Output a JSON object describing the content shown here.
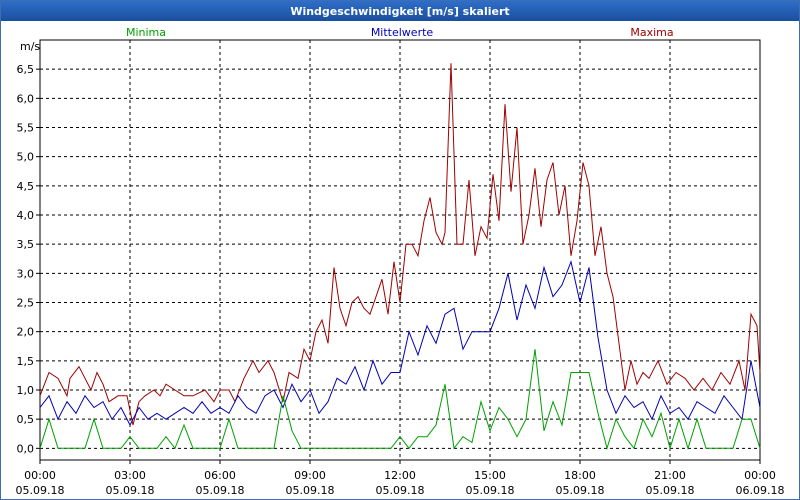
{
  "window": {
    "title": "Windgeschwindigkeit [m/s] skaliert"
  },
  "colors": {
    "minima": "#00a000",
    "mean": "#0000b4",
    "maxima": "#a00000",
    "grid": "#000000"
  },
  "chart_data": {
    "type": "line",
    "title": "Windgeschwindigkeit [m/s] skaliert",
    "ylabel": "m/s",
    "xlabel": "",
    "ylim": [
      -0.2,
      7.0
    ],
    "yticks": [
      "0,0",
      "0,5",
      "1,0",
      "1,5",
      "2,0",
      "2,5",
      "3,0",
      "3,5",
      "4,0",
      "4,5",
      "5,0",
      "5,5",
      "6,0",
      "6,5"
    ],
    "xlim": [
      0,
      24
    ],
    "xticks": [
      {
        "time": "00:00",
        "date": "05.09.18"
      },
      {
        "time": "03:00",
        "date": "05.09.18"
      },
      {
        "time": "06:00",
        "date": "05.09.18"
      },
      {
        "time": "09:00",
        "date": "05.09.18"
      },
      {
        "time": "12:00",
        "date": "05.09.18"
      },
      {
        "time": "15:00",
        "date": "05.09.18"
      },
      {
        "time": "18:00",
        "date": "05.09.18"
      },
      {
        "time": "21:00",
        "date": "05.09.18"
      },
      {
        "time": "00:00",
        "date": "06.09.18"
      }
    ],
    "legend": {
      "minima": "Minima",
      "mean": "Mittelwerte",
      "maxima": "Maxima"
    },
    "series": [
      {
        "key": "maxima",
        "name": "Maxima",
        "x": [
          0.0,
          0.3,
          0.6,
          0.9,
          1.0,
          1.3,
          1.5,
          1.7,
          1.9,
          2.1,
          2.3,
          2.6,
          2.9,
          3.1,
          3.3,
          3.5,
          3.8,
          4.0,
          4.2,
          4.5,
          4.8,
          5.1,
          5.5,
          5.8,
          6.0,
          6.3,
          6.5,
          6.8,
          7.1,
          7.3,
          7.6,
          7.8,
          8.1,
          8.3,
          8.6,
          8.8,
          9.0,
          9.2,
          9.4,
          9.6,
          9.8,
          10.0,
          10.2,
          10.4,
          10.6,
          10.8,
          11.0,
          11.2,
          11.4,
          11.6,
          11.8,
          12.0,
          12.2,
          12.4,
          12.6,
          12.8,
          13.0,
          13.2,
          13.4,
          13.5,
          13.7,
          13.9,
          14.1,
          14.3,
          14.5,
          14.7,
          14.9,
          15.1,
          15.3,
          15.5,
          15.7,
          15.9,
          16.1,
          16.3,
          16.5,
          16.7,
          16.9,
          17.1,
          17.3,
          17.5,
          17.7,
          17.9,
          18.1,
          18.3,
          18.5,
          18.7,
          18.9,
          19.1,
          19.3,
          19.5,
          19.7,
          19.9,
          20.1,
          20.3,
          20.6,
          20.9,
          21.2,
          21.5,
          21.8,
          22.1,
          22.4,
          22.7,
          23.0,
          23.3,
          23.5,
          23.7,
          23.9,
          24.0
        ],
        "values": [
          0.9,
          1.3,
          1.2,
          0.9,
          1.2,
          1.4,
          1.2,
          1.0,
          1.3,
          1.1,
          0.8,
          0.9,
          0.9,
          0.4,
          0.8,
          0.9,
          1.0,
          0.9,
          1.1,
          1.0,
          0.9,
          0.9,
          1.0,
          0.8,
          1.0,
          1.0,
          0.8,
          1.2,
          1.5,
          1.3,
          1.5,
          1.3,
          0.8,
          1.3,
          1.2,
          1.7,
          1.5,
          2.0,
          2.2,
          1.8,
          3.1,
          2.4,
          2.1,
          2.5,
          2.6,
          2.4,
          2.3,
          2.6,
          2.9,
          2.3,
          3.2,
          2.5,
          3.5,
          3.5,
          3.3,
          3.9,
          4.3,
          3.7,
          3.5,
          3.7,
          6.6,
          3.5,
          3.5,
          4.6,
          3.3,
          3.8,
          3.6,
          4.7,
          3.9,
          5.9,
          4.4,
          5.5,
          3.5,
          4.0,
          4.8,
          3.8,
          4.6,
          4.9,
          4.0,
          4.5,
          3.3,
          3.9,
          4.9,
          4.5,
          3.3,
          3.8,
          3.0,
          2.6,
          1.8,
          1.0,
          1.5,
          1.1,
          1.3,
          1.2,
          1.5,
          1.1,
          1.3,
          1.2,
          1.0,
          1.2,
          1.0,
          1.3,
          1.1,
          1.5,
          1.0,
          2.3,
          2.1,
          1.3
        ]
      },
      {
        "key": "mean",
        "name": "Mittelwerte",
        "x": [
          0.0,
          0.3,
          0.6,
          0.9,
          1.2,
          1.5,
          1.8,
          2.1,
          2.4,
          2.7,
          3.0,
          3.3,
          3.6,
          3.9,
          4.2,
          4.5,
          4.8,
          5.1,
          5.4,
          5.7,
          6.0,
          6.3,
          6.6,
          6.9,
          7.2,
          7.5,
          7.8,
          8.1,
          8.4,
          8.7,
          9.0,
          9.3,
          9.6,
          9.9,
          10.2,
          10.5,
          10.8,
          11.1,
          11.4,
          11.7,
          12.0,
          12.3,
          12.6,
          12.9,
          13.2,
          13.5,
          13.8,
          14.1,
          14.4,
          14.7,
          15.0,
          15.3,
          15.6,
          15.9,
          16.2,
          16.5,
          16.8,
          17.1,
          17.4,
          17.7,
          18.0,
          18.3,
          18.6,
          18.9,
          19.2,
          19.5,
          19.8,
          20.1,
          20.4,
          20.7,
          21.0,
          21.3,
          21.6,
          21.9,
          22.2,
          22.5,
          22.8,
          23.1,
          23.4,
          23.7,
          24.0
        ],
        "values": [
          0.7,
          0.9,
          0.5,
          0.8,
          0.6,
          0.9,
          0.7,
          0.8,
          0.5,
          0.7,
          0.4,
          0.7,
          0.5,
          0.6,
          0.5,
          0.6,
          0.7,
          0.6,
          0.8,
          0.6,
          0.7,
          0.6,
          0.9,
          0.7,
          0.6,
          0.9,
          1.0,
          0.7,
          1.1,
          0.8,
          1.0,
          0.6,
          0.8,
          1.2,
          1.1,
          1.4,
          1.0,
          1.5,
          1.1,
          1.3,
          1.3,
          2.0,
          1.6,
          2.1,
          1.8,
          2.3,
          2.4,
          1.7,
          2.0,
          2.0,
          2.0,
          2.4,
          3.0,
          2.2,
          2.8,
          2.4,
          3.1,
          2.6,
          2.8,
          3.2,
          2.5,
          3.1,
          1.9,
          1.0,
          0.6,
          0.9,
          0.7,
          0.8,
          0.5,
          0.9,
          0.6,
          0.7,
          0.5,
          0.8,
          0.7,
          0.6,
          0.9,
          0.7,
          0.5,
          1.5,
          0.7
        ]
      },
      {
        "key": "minima",
        "name": "Minima",
        "x": [
          0.0,
          0.3,
          0.6,
          0.9,
          1.2,
          1.5,
          1.8,
          2.1,
          2.4,
          2.7,
          3.0,
          3.3,
          3.6,
          3.9,
          4.2,
          4.5,
          4.8,
          5.1,
          5.4,
          5.7,
          6.0,
          6.3,
          6.6,
          6.9,
          7.2,
          7.5,
          7.8,
          8.1,
          8.4,
          8.7,
          9.0,
          9.3,
          9.6,
          9.9,
          10.2,
          10.5,
          10.8,
          11.1,
          11.4,
          11.7,
          12.0,
          12.3,
          12.6,
          12.9,
          13.2,
          13.5,
          13.8,
          14.1,
          14.4,
          14.7,
          15.0,
          15.3,
          15.6,
          15.9,
          16.2,
          16.5,
          16.8,
          17.1,
          17.4,
          17.7,
          18.0,
          18.3,
          18.6,
          18.9,
          19.2,
          19.5,
          19.8,
          20.1,
          20.4,
          20.7,
          21.0,
          21.3,
          21.6,
          21.9,
          22.2,
          22.5,
          22.8,
          23.1,
          23.4,
          23.7,
          24.0
        ],
        "values": [
          0.0,
          0.5,
          0.0,
          0.0,
          0.0,
          0.0,
          0.5,
          0.0,
          0.0,
          0.0,
          0.2,
          0.0,
          0.0,
          0.0,
          0.2,
          0.0,
          0.4,
          0.0,
          0.0,
          0.0,
          0.0,
          0.5,
          0.0,
          0.0,
          0.0,
          0.0,
          0.0,
          0.9,
          0.3,
          0.0,
          0.0,
          0.0,
          0.0,
          0.0,
          0.0,
          0.0,
          0.0,
          0.0,
          0.0,
          0.0,
          0.2,
          0.0,
          0.2,
          0.2,
          0.4,
          1.1,
          0.0,
          0.2,
          0.1,
          0.8,
          0.3,
          0.7,
          0.5,
          0.2,
          0.5,
          1.7,
          0.3,
          0.8,
          0.4,
          1.3,
          1.3,
          1.3,
          0.6,
          0.0,
          0.5,
          0.2,
          0.0,
          0.5,
          0.2,
          0.6,
          0.0,
          0.5,
          0.0,
          0.5,
          0.0,
          0.0,
          0.0,
          0.0,
          0.5,
          0.5,
          0.0
        ]
      }
    ]
  }
}
